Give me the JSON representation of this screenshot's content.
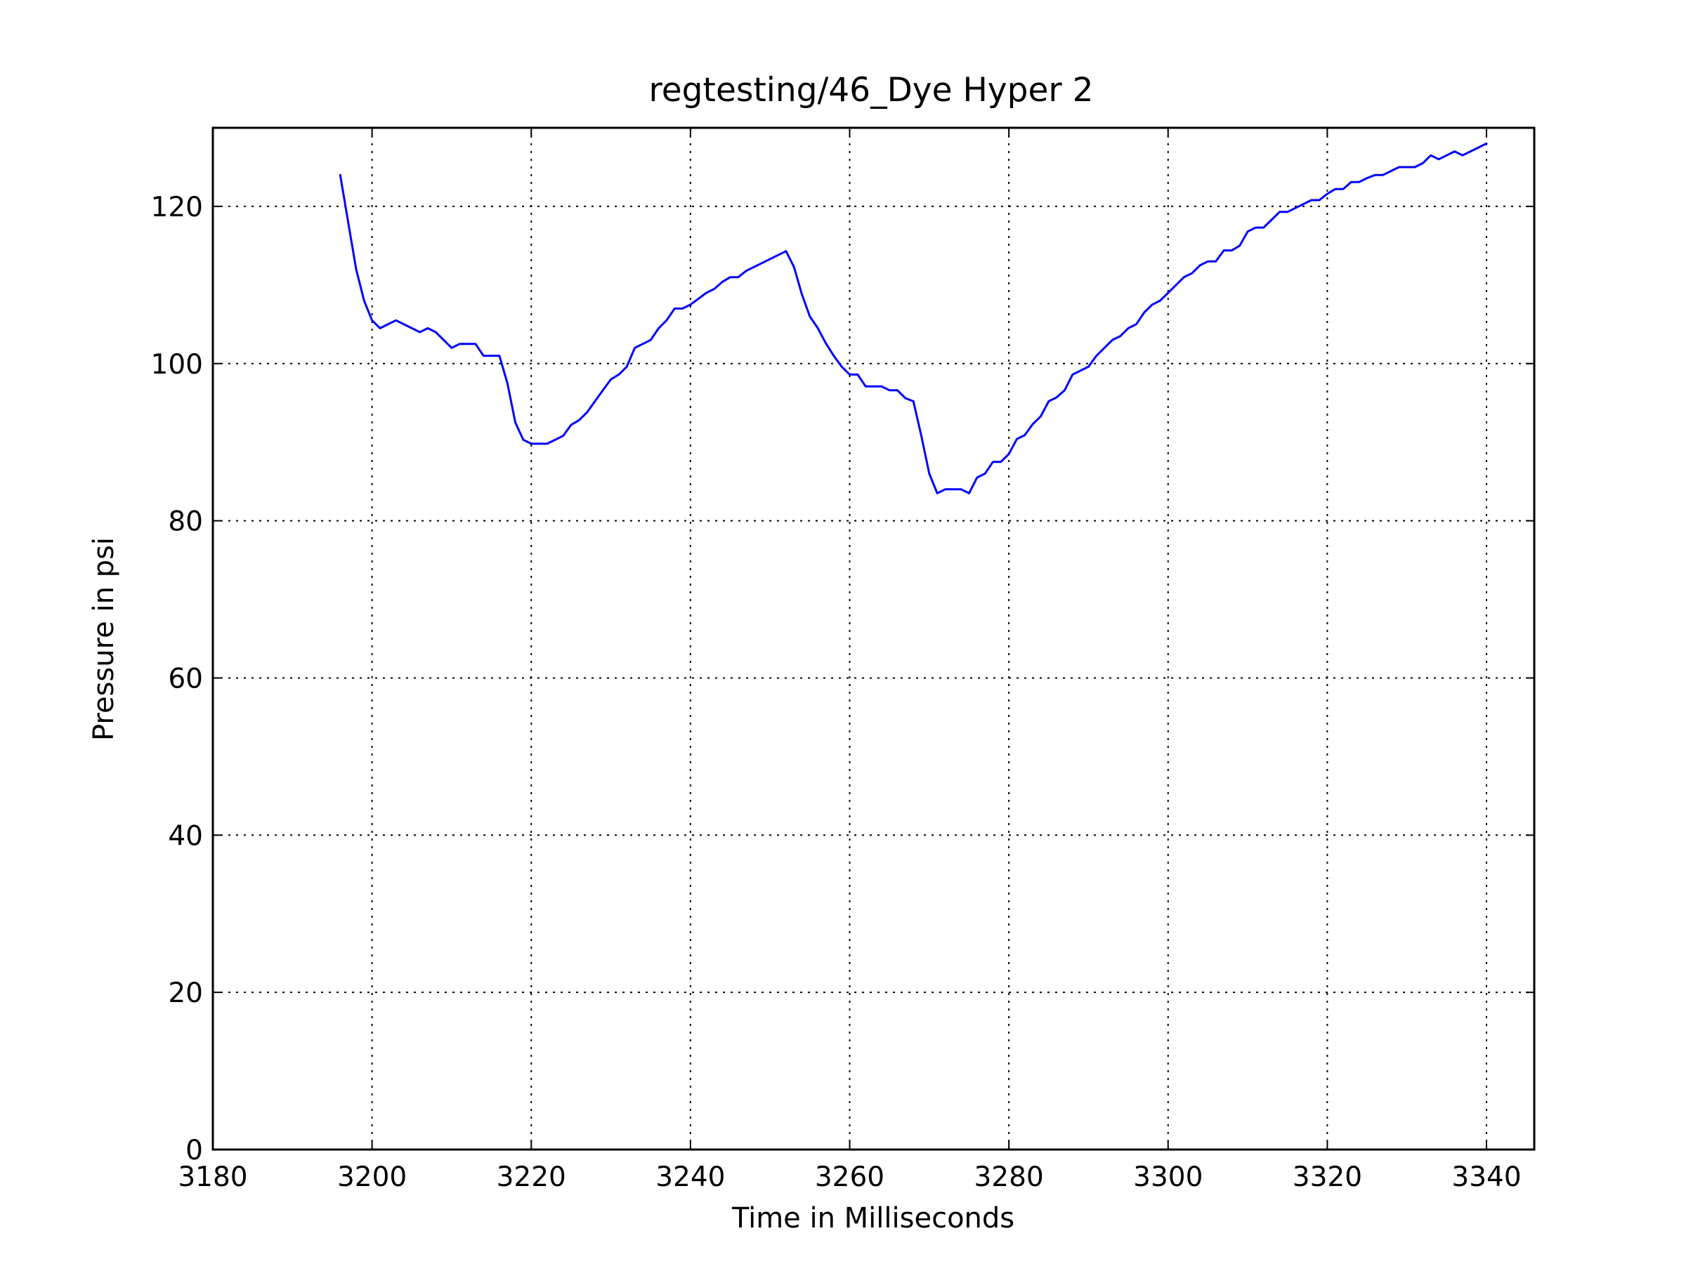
{
  "chart_data": {
    "type": "line",
    "title": "regtesting/46_Dye Hyper 2",
    "xlabel": "Time in Milliseconds",
    "ylabel": "Pressure in psi",
    "xlim": [
      3180,
      3346
    ],
    "ylim": [
      0,
      130
    ],
    "xticks": [
      3180,
      3200,
      3220,
      3240,
      3260,
      3280,
      3300,
      3320,
      3340
    ],
    "yticks": [
      0,
      20,
      40,
      60,
      80,
      100,
      120
    ],
    "grid": true,
    "colors": {
      "line": "#0000ff"
    },
    "series": [
      {
        "x": [
          3196,
          3197,
          3198,
          3199,
          3200,
          3201,
          3203,
          3205,
          3206,
          3207,
          3208,
          3209,
          3210,
          3211,
          3213,
          3214,
          3215,
          3216,
          3217,
          3218,
          3219,
          3220,
          3222,
          3224,
          3225,
          3226,
          3227,
          3229,
          3230,
          3231,
          3232,
          3233,
          3234,
          3235,
          3236,
          3237,
          3238,
          3239,
          3240,
          3242,
          3243,
          3244,
          3245,
          3246,
          3247,
          3252,
          3253,
          3254,
          3255,
          3256,
          3257,
          3258,
          3259,
          3260,
          3261,
          3262,
          3264,
          3265,
          3266,
          3267,
          3268,
          3269,
          3270,
          3271,
          3272,
          3274,
          3275,
          3276,
          3277,
          3278,
          3279,
          3280,
          3281,
          3282,
          3283,
          3284,
          3285,
          3286,
          3287,
          3288,
          3290,
          3291,
          3292,
          3293,
          3294,
          3295,
          3296,
          3297,
          3298,
          3299,
          3300,
          3301,
          3302,
          3303,
          3304,
          3305,
          3306,
          3307,
          3308,
          3309,
          3310,
          3311,
          3312,
          3313,
          3314,
          3315,
          3316,
          3317,
          3318,
          3319,
          3320,
          3321,
          3322,
          3323,
          3324,
          3325,
          3326,
          3327,
          3328,
          3329,
          3330,
          3331,
          3332,
          3333,
          3334,
          3335,
          3336,
          3337,
          3338,
          3339,
          3340
        ],
        "y": [
          124,
          118,
          112,
          108,
          105.5,
          104.5,
          105.5,
          104.5,
          104,
          104.5,
          104,
          103,
          102,
          102.5,
          102.5,
          101,
          101,
          101,
          97.5,
          92.5,
          90.3,
          89.8,
          89.8,
          90.8,
          92.2,
          92.8,
          93.8,
          96.6,
          98,
          98.6,
          99.6,
          102,
          102.5,
          103,
          104.5,
          105.5,
          107,
          107,
          107.5,
          109,
          109.5,
          110.4,
          111,
          111,
          111.8,
          114.3,
          112.3,
          108.8,
          106,
          104.5,
          102.6,
          101,
          99.6,
          98.6,
          98.6,
          97.1,
          97.1,
          96.6,
          96.6,
          95.6,
          95.2,
          90.8,
          86,
          83.5,
          84,
          84,
          83.5,
          85.5,
          86,
          87.5,
          87.5,
          88.5,
          90.4,
          90.9,
          92.3,
          93.3,
          95.2,
          95.7,
          96.6,
          98.6,
          99.6,
          101,
          102,
          103,
          103.5,
          104.5,
          105,
          106.5,
          107.5,
          108,
          109,
          110,
          111,
          111.5,
          112.5,
          113,
          113,
          114.4,
          114.4,
          115,
          116.8,
          117.3,
          117.3,
          118.3,
          119.3,
          119.3,
          119.8,
          120.3,
          120.8,
          120.8,
          121.6,
          122.2,
          122.2,
          123.1,
          123.1,
          123.6,
          124,
          124,
          124.5,
          125,
          125,
          125,
          125.5,
          126.5,
          126,
          126.5,
          127,
          126.5,
          127,
          127.5,
          128
        ]
      }
    ]
  }
}
